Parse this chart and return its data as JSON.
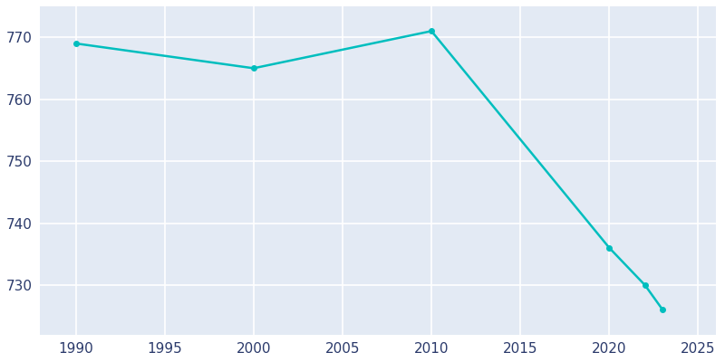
{
  "years": [
    1990,
    2000,
    2010,
    2020,
    2022,
    2023
  ],
  "population": [
    769,
    765,
    771,
    736,
    730,
    726
  ],
  "line_color": "#00BEBE",
  "marker": "o",
  "marker_size": 4,
  "plot_bg_color": "#E3EAF4",
  "fig_bg_color": "#FFFFFF",
  "grid_color": "#FFFFFF",
  "xlim": [
    1988,
    2026
  ],
  "ylim": [
    722,
    775
  ],
  "xticks": [
    1990,
    1995,
    2000,
    2005,
    2010,
    2015,
    2020,
    2025
  ],
  "yticks": [
    730,
    740,
    750,
    760,
    770
  ],
  "tick_color": "#2B3A6B",
  "tick_fontsize": 11,
  "linewidth": 1.8
}
